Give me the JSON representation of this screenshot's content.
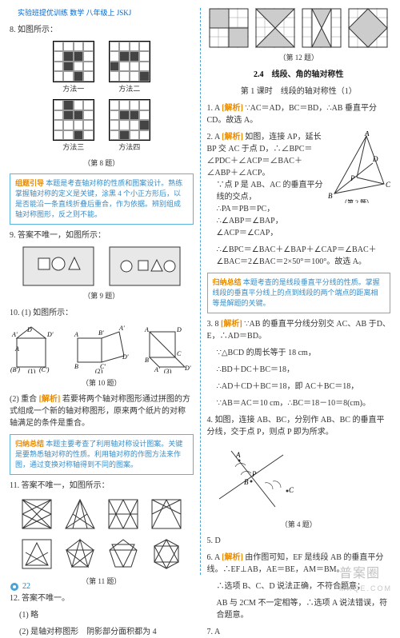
{
  "header": "实验班提优训练 数学 八年级上 JSKJ",
  "page_number": "22",
  "watermark_main": "普案圈",
  "watermark_sub": "MXQE.COM",
  "left": {
    "q8_text": "8. 如图所示：",
    "q8_methods": [
      "方法一",
      "方法二",
      "方法三",
      "方法四"
    ],
    "q8_caption": "（第 8 题）",
    "q8_grids": {
      "g1": [
        0,
        0,
        0,
        0,
        0,
        1,
        1,
        0,
        0,
        1,
        0,
        0,
        0,
        0,
        1,
        0
      ],
      "g2": [
        0,
        0,
        0,
        0,
        0,
        1,
        1,
        0,
        1,
        0,
        0,
        0,
        0,
        0,
        0,
        1
      ],
      "g3": [
        0,
        1,
        0,
        0,
        0,
        1,
        1,
        0,
        0,
        0,
        0,
        0,
        0,
        0,
        1,
        0
      ],
      "g4": [
        0,
        0,
        0,
        0,
        0,
        1,
        1,
        0,
        0,
        0,
        0,
        1,
        0,
        1,
        0,
        0
      ]
    },
    "tip1_label": "组题引导",
    "tip1_text": "本题是考查轴对称的性质和图案设计。熟练掌握轴对称的定义是关键，涂黑 4 个小正方形后，以是否能沿一条直线折叠后重合，作为依据。辨别组成轴对称图形，反之则不能。",
    "q9_text": "9. 答案不唯一，如图所示：",
    "q9_caption": "（第 9 题）",
    "q10_text": "10. (1) 如图所示：",
    "q10_caption": "（第 10 题）",
    "q10_2_label": "(2) 重合",
    "q10_2_analysis_label": "[解析]",
    "q10_2_text": "若要将两个轴对称图形通过拼图的方式组成一个新的轴对称图形，原来两个纸片的对称轴满足的条件是重合。",
    "tip2_label": "归纳总结",
    "tip2_text": "本题主要考查了利用轴对称设计图案。关键是要熟悉轴对称的性质。利用轴对称的作图方法来作图，通过变换对称轴得到不同的图案。",
    "q11_text": "11. 答案不唯一，如图所示：",
    "q11_caption": "（第 11 题）",
    "q12_a": "12. 答案不唯一。",
    "q12_b": "(1) 略",
    "q12_c": "(2) 是轴对称图形　阴影部分面积都为 4"
  },
  "right": {
    "q12_caption": "（第 12 题）",
    "section_num": "2.4",
    "section_title": "线段、角的轴对称性",
    "subtitle": "第 1 课时　线段的轴对称性（1）",
    "q1": "1. A",
    "q1_analysis_label": "[解析]",
    "q1_text": "∵AC＝AD，BC＝BD，∴AB 垂直平分 CD。故选 A。",
    "q2": "2. A",
    "q2_analysis_label": "[解析]",
    "q2_text_a": "如图，连接 AP，延长 BP 交 AC 于点 D，∴∠BPC＝∠PDC＋∠ACP＝∠BAC＋∠ABP＋∠ACP。",
    "q2_text_b": "∵点 P 是 AB、AC 的垂直平分线的交点，",
    "q2_text_c": "∴PA＝PB＝PC，",
    "q2_text_d": "∴∠ABP＝∠BAP，",
    "q2_text_e": "∠ACP＝∠CAP，",
    "q2_text_f": "∴∠BPC＝∠BAC＋∠BAP＋∠CAP＝∠BAC＋∠BAC＝2∠BAC＝2×50°＝100°。故选 A。",
    "q2_caption": "（第 2 题）",
    "tip3_label": "归纳总结",
    "tip3_text": "本题考查的是线段垂直平分线的性质。掌握线段的垂直平分线上的点到线段的两个端点的距离相等是解题的关键。",
    "q3": "3. 8",
    "q3_analysis_label": "[解析]",
    "q3_text_a": "∵AB 的垂直平分线分别交 AC、AB 于D、E，∴AD＝BD。",
    "q3_text_b": "∵△BCD 的周长等于 18 cm，",
    "q3_text_c": "∴BD＋DC＋BC＝18，",
    "q3_text_d": "∴AD＋CD＋BC＝18，即 AC＋BC＝18，",
    "q3_text_e": "∵AB＝AC＝10 cm，∴BC＝18－10＝8(cm)。",
    "q4_text": "4. 如图，连接 AB、BC，分别作 AB、BC 的垂直平分线，交于点 P，则点 P 即为所求。",
    "q4_caption": "（第 4 题）",
    "q5": "5. D",
    "q6": "6. A",
    "q6_analysis_label": "[解析]",
    "q6_text_a": "由作图可知，EF 是线段 AB 的垂直平分线。∴EF⊥AB，AE＝BE，AM＝BM。",
    "q6_text_b": "∴选项 B、C、D 说法正确，不符合题意；",
    "q6_text_c": "AB 与 2CM 不一定相等，∴选项 A 说法错误，符合题意。",
    "q7": "7. A"
  }
}
